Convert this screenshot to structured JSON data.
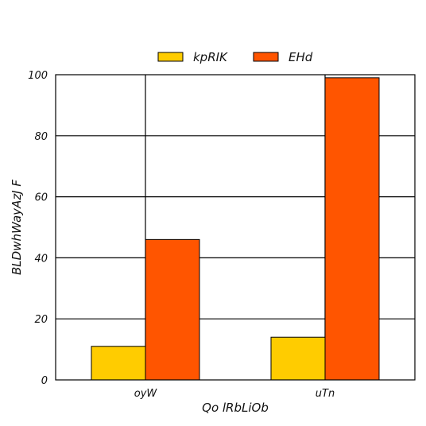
{
  "chart_data": {
    "type": "bar",
    "categories": [
      "oyW",
      "uTn"
    ],
    "series": [
      {
        "name": "kpRIK",
        "values": [
          11,
          14
        ],
        "color": "#ffcc00"
      },
      {
        "name": "EHd",
        "values": [
          46,
          99
        ],
        "color": "#ff5500"
      }
    ],
    "xlabel": "Qo lRbLiOb",
    "ylabel": "BLDwhWayAzJ F",
    "ylim": [
      0,
      100
    ],
    "yticks": [
      0,
      20,
      40,
      60,
      80,
      100
    ],
    "grid": true,
    "legend": "top-center, above plot"
  }
}
